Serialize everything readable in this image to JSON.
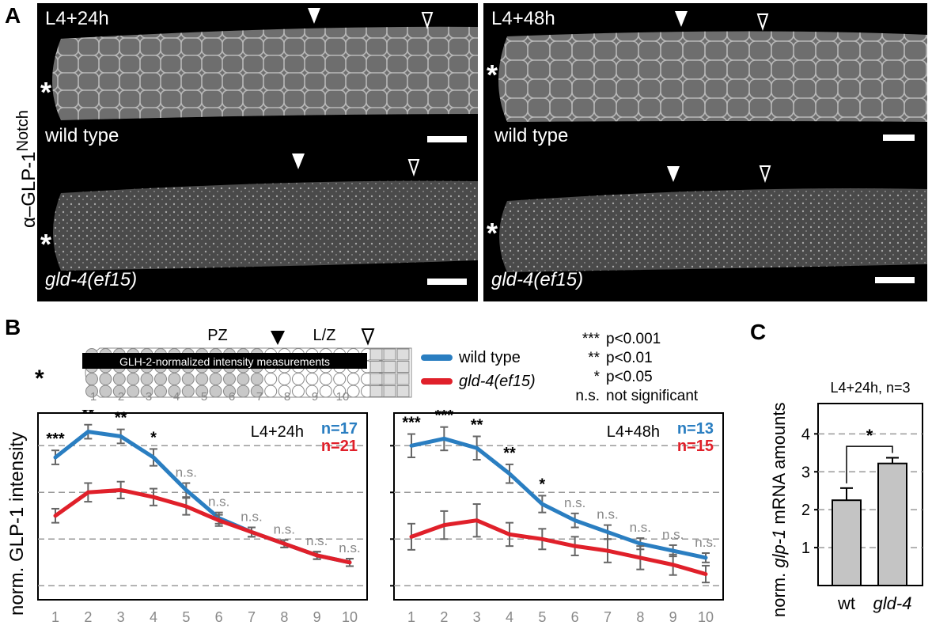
{
  "panel_a": {
    "letter": "A",
    "ylabel_alpha": "α",
    "ylabel_rest": "–GLP-1",
    "ylabel_sup": "Notch",
    "images": [
      {
        "time": "L4+24h",
        "wt_label": "wild type",
        "mut_label": "gld-4(ef15)"
      },
      {
        "time": "L4+48h",
        "wt_label": "wild type",
        "mut_label": "gld-4(ef15)"
      }
    ],
    "asterisk": "*"
  },
  "panel_b": {
    "letter": "B",
    "schematic": {
      "pz_label": "PZ",
      "lz_label": "L/Z",
      "bar_text": "GLH-2-normalized intensity measurements",
      "positions": [
        "1",
        "2",
        "3",
        "4",
        "5",
        "6",
        "7",
        "8",
        "9",
        "10"
      ],
      "asterisk": "*"
    },
    "legend": [
      {
        "name": "wild type",
        "color": "#2a7ec1"
      },
      {
        "name": "gld-4(ef15)",
        "color": "#e0202a"
      }
    ],
    "significance": [
      {
        "sym": "***",
        "text": "p<0.001"
      },
      {
        "sym": "**",
        "text": "p<0.01"
      },
      {
        "sym": "*",
        "text": "p<0.05"
      },
      {
        "sym": "n.s.",
        "text": "not significant"
      }
    ],
    "ylabel": "norm. GLP-1 intensity"
  },
  "panel_c": {
    "letter": "C",
    "ylabel_pre": "norm. ",
    "ylabel_italic": "glp-1",
    "ylabel_post": " mRNA amounts",
    "title": "L4+24h, n=3"
  },
  "chart_data": [
    {
      "type": "line",
      "title": "L4+24h",
      "n_labels": [
        "n=17",
        "n=21"
      ],
      "x": [
        1,
        2,
        3,
        4,
        5,
        6,
        7,
        8,
        9,
        10
      ],
      "ylim": [
        0.7,
        4.7
      ],
      "yticks": [
        1,
        2,
        3,
        4
      ],
      "grid": true,
      "series": [
        {
          "name": "wild type",
          "color": "#2a7ec1",
          "values": [
            3.75,
            4.3,
            4.2,
            3.75,
            3.05,
            2.45,
            2.15,
            1.9,
            1.65,
            1.5
          ],
          "err": [
            0.15,
            0.15,
            0.15,
            0.18,
            0.15,
            0.12,
            0.1,
            0.08,
            0.08,
            0.08
          ]
        },
        {
          "name": "gld-4(ef15)",
          "color": "#e0202a",
          "values": [
            2.5,
            3.0,
            3.05,
            2.9,
            2.7,
            2.4,
            2.15,
            1.9,
            1.65,
            1.5
          ],
          "err": [
            0.15,
            0.2,
            0.18,
            0.18,
            0.18,
            0.12,
            0.1,
            0.08,
            0.08,
            0.08
          ]
        }
      ],
      "annotations": [
        "***",
        "**",
        "**",
        "*",
        "n.s.",
        "n.s.",
        "n.s.",
        "n.s.",
        "n.s.",
        "n.s."
      ]
    },
    {
      "type": "line",
      "title": "L4+48h",
      "n_labels": [
        "n=13",
        "n=15"
      ],
      "x": [
        1,
        2,
        3,
        4,
        5,
        6,
        7,
        8,
        9,
        10
      ],
      "ylim": [
        0.7,
        4.7
      ],
      "yticks": [
        1,
        2,
        3,
        4
      ],
      "grid": true,
      "series": [
        {
          "name": "wild type",
          "color": "#2a7ec1",
          "values": [
            4.0,
            4.15,
            3.95,
            3.4,
            2.75,
            2.4,
            2.15,
            1.9,
            1.75,
            1.6
          ],
          "err": [
            0.25,
            0.25,
            0.25,
            0.2,
            0.18,
            0.15,
            0.15,
            0.12,
            0.12,
            0.1
          ]
        },
        {
          "name": "gld-4(ef15)",
          "color": "#e0202a",
          "values": [
            2.05,
            2.3,
            2.4,
            2.1,
            2.0,
            1.85,
            1.75,
            1.6,
            1.45,
            1.25
          ],
          "err": [
            0.28,
            0.3,
            0.35,
            0.25,
            0.22,
            0.2,
            0.25,
            0.25,
            0.22,
            0.18
          ]
        }
      ],
      "annotations": [
        "***",
        "***",
        "**",
        "**",
        "*",
        "n.s.",
        "n.s.",
        "n.s.",
        "n.s.",
        "n.s."
      ]
    },
    {
      "type": "bar",
      "title": "L4+24h, n=3",
      "categories": [
        "wt",
        "gld-4"
      ],
      "values": [
        2.25,
        3.22
      ],
      "err": [
        0.32,
        0.15
      ],
      "ylim": [
        0,
        4.8
      ],
      "yticks": [
        1,
        2,
        3,
        4
      ],
      "grid": true,
      "significance": "*"
    }
  ]
}
